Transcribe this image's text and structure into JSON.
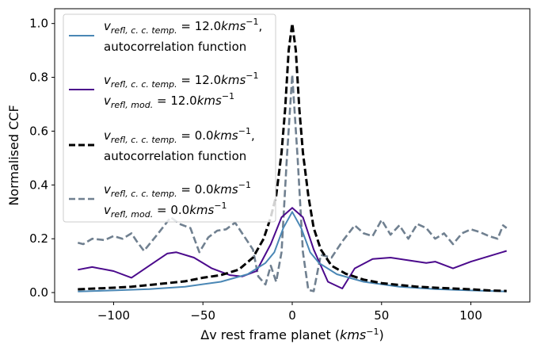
{
  "chart_data": {
    "type": "line",
    "title": "",
    "xlabel": "Δv rest frame planet (kms⁻¹)",
    "ylabel": "Normalised CCF",
    "xlim": [
      -133,
      133
    ],
    "ylim": [
      -0.035,
      1.055
    ],
    "x_ticks": [
      -100,
      -50,
      0,
      50,
      100
    ],
    "y_ticks": [
      0.0,
      0.2,
      0.4,
      0.6,
      0.8,
      1.0
    ],
    "x_tick_labels": [
      "−100",
      "−50",
      "0",
      "50",
      "100"
    ],
    "y_tick_labels": [
      "0.0",
      "0.2",
      "0.4",
      "0.6",
      "0.8",
      "1.0"
    ],
    "grid": false,
    "legend_position": "upper-left",
    "series": [
      {
        "name": "v_refl,c.c.temp. = 12.0kms⁻¹, autocorrelation function",
        "legend_lines": [
          [
            "v",
            "refl, c. c. temp.",
            " = 12.0",
            "kms",
            "−1",
            ","
          ],
          [
            "autocorrelation function"
          ]
        ],
        "color": "#4a87b5",
        "style": "solid",
        "x": [
          -120,
          -100,
          -80,
          -60,
          -40,
          -25,
          -15,
          -10,
          -5,
          0,
          5,
          10,
          15,
          25,
          40,
          60,
          80,
          100,
          120
        ],
        "y": [
          0.004,
          0.008,
          0.013,
          0.022,
          0.04,
          0.068,
          0.11,
          0.15,
          0.24,
          0.3,
          0.24,
          0.15,
          0.11,
          0.068,
          0.04,
          0.022,
          0.013,
          0.008,
          0.004
        ]
      },
      {
        "name": "v_refl,c.c.temp. = 12.0kms⁻¹ v_refl,mod. = 12.0kms⁻¹",
        "legend_lines": [
          [
            "v",
            "refl, c. c. temp.",
            " = 12.0",
            "kms",
            "−1",
            ""
          ],
          [
            "v",
            "refl, mod.",
            " = 12.0",
            "kms",
            "−1",
            ""
          ]
        ],
        "color": "#4b0a8c",
        "style": "solid",
        "x": [
          -120,
          -112,
          -100,
          -90,
          -80,
          -70,
          -65,
          -55,
          -45,
          -35,
          -28,
          -20,
          -12,
          -6,
          0,
          6,
          12,
          20,
          28,
          35,
          45,
          55,
          65,
          75,
          80,
          90,
          100,
          110,
          120
        ],
        "y": [
          0.085,
          0.095,
          0.08,
          0.055,
          0.1,
          0.145,
          0.15,
          0.13,
          0.09,
          0.065,
          0.06,
          0.08,
          0.18,
          0.28,
          0.315,
          0.28,
          0.16,
          0.04,
          0.015,
          0.09,
          0.125,
          0.13,
          0.12,
          0.11,
          0.115,
          0.09,
          0.115,
          0.135,
          0.155
        ]
      },
      {
        "name": "v_refl,c.c.temp. = 0.0kms⁻¹, autocorrelation function",
        "legend_lines": [
          [
            "v",
            "refl, c. c. temp.",
            " = 0.0",
            "kms",
            "−1",
            ","
          ],
          [
            "autocorrelation function"
          ]
        ],
        "color": "#000000",
        "style": "dash-thick",
        "x": [
          -120,
          -110,
          -100,
          -90,
          -80,
          -70,
          -60,
          -50,
          -40,
          -30,
          -22,
          -16,
          -12,
          -9,
          -6,
          -4,
          -2,
          0,
          2,
          4,
          6,
          9,
          12,
          16,
          22,
          30,
          40,
          50,
          60,
          70,
          80,
          90,
          100,
          110,
          120
        ],
        "y": [
          0.012,
          0.015,
          0.018,
          0.022,
          0.028,
          0.035,
          0.042,
          0.055,
          0.065,
          0.085,
          0.13,
          0.2,
          0.28,
          0.36,
          0.52,
          0.68,
          0.9,
          1.0,
          0.9,
          0.68,
          0.52,
          0.36,
          0.24,
          0.16,
          0.1,
          0.07,
          0.048,
          0.035,
          0.028,
          0.022,
          0.018,
          0.015,
          0.012,
          0.008,
          0.006
        ]
      },
      {
        "name": "v_refl,c.c.temp. = 0.0kms⁻¹ v_refl,mod. = 0.0kms⁻¹",
        "legend_lines": [
          [
            "v",
            "refl, c. c. temp.",
            " = 0.0",
            "kms",
            "−1",
            ""
          ],
          [
            "v",
            "refl, mod.",
            " = 0.0",
            "kms",
            "−1",
            ""
          ]
        ],
        "color": "#708090",
        "style": "dash",
        "x": [
          -120,
          -117,
          -112,
          -105,
          -100,
          -95,
          -90,
          -87,
          -83,
          -75,
          -68,
          -63,
          -57,
          -52,
          -47,
          -42,
          -37,
          -32,
          -27,
          -22,
          -19,
          -15,
          -12,
          -9,
          -6,
          -3,
          0,
          3,
          6,
          9,
          12,
          16,
          22,
          28,
          35,
          40,
          45,
          50,
          55,
          60,
          65,
          70,
          75,
          80,
          85,
          90,
          95,
          100,
          105,
          110,
          115,
          118,
          120
        ],
        "y": [
          0.185,
          0.18,
          0.2,
          0.195,
          0.21,
          0.2,
          0.22,
          0.19,
          0.155,
          0.22,
          0.28,
          0.255,
          0.24,
          0.15,
          0.205,
          0.23,
          0.235,
          0.26,
          0.21,
          0.16,
          0.06,
          0.03,
          0.1,
          0.04,
          0.15,
          0.5,
          0.81,
          0.5,
          0.15,
          0.01,
          0.005,
          0.14,
          0.13,
          0.19,
          0.25,
          0.22,
          0.21,
          0.27,
          0.215,
          0.25,
          0.2,
          0.255,
          0.24,
          0.2,
          0.22,
          0.18,
          0.22,
          0.235,
          0.225,
          0.21,
          0.2,
          0.25,
          0.24
        ]
      }
    ]
  }
}
